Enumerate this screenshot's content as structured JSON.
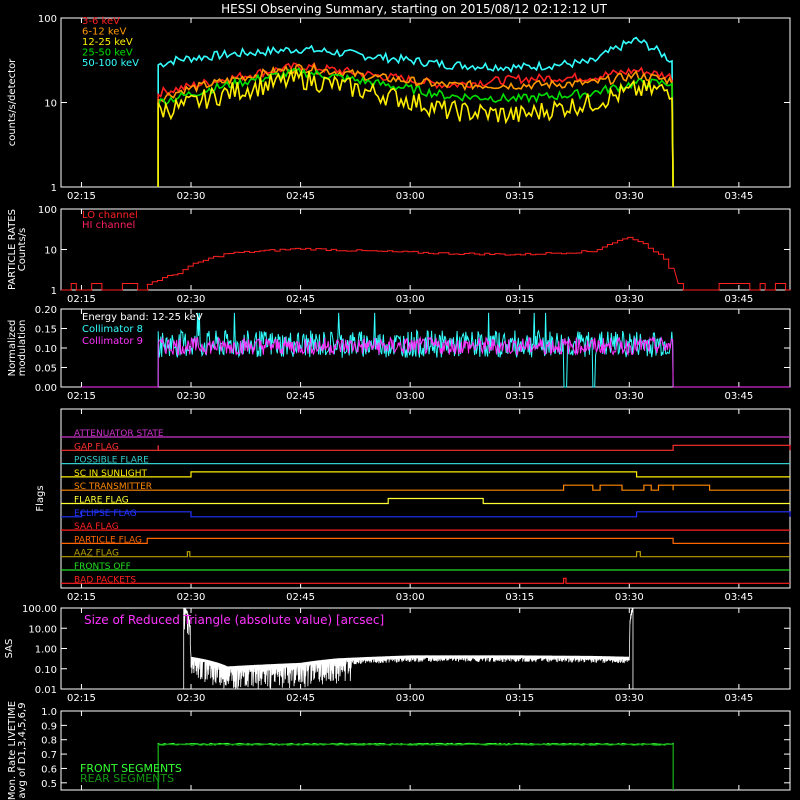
{
  "title": "HESSI Observing Summary, starting on 2015/08/12 02:12:12 UT",
  "time_ticks": [
    "02:15",
    "02:30",
    "02:45",
    "03:00",
    "03:15",
    "03:30",
    "03:45"
  ],
  "chart_data": [
    {
      "type": "line",
      "id": "counts",
      "ylabel": "counts/s/detector",
      "yscale": "log",
      "ylim": [
        1,
        100
      ],
      "yticks": [
        "1",
        "10",
        "100"
      ],
      "series": [
        {
          "name": "3-6 keV",
          "color": "#ff2020",
          "x": [
            "02:25:30",
            "02:29",
            "02:35",
            "02:45",
            "02:55",
            "03:05",
            "03:15",
            "03:25",
            "03:31",
            "03:36"
          ],
          "values": [
            13,
            15,
            19,
            27,
            21,
            16,
            19,
            20,
            24,
            20
          ]
        },
        {
          "name": "6-12 keV",
          "color": "#ff9900",
          "x": [
            "02:25:30",
            "02:29",
            "02:35",
            "02:45",
            "02:55",
            "03:05",
            "03:15",
            "03:25",
            "03:31",
            "03:36"
          ],
          "values": [
            11,
            14,
            18,
            26,
            20,
            16,
            16,
            17,
            21,
            18
          ]
        },
        {
          "name": "12-25 keV",
          "color": "#ffee00",
          "x": [
            "02:25:30",
            "02:29",
            "02:35",
            "02:45",
            "02:55",
            "03:05",
            "03:15",
            "03:25",
            "03:31",
            "03:36"
          ],
          "values": [
            8,
            9,
            13,
            19,
            13,
            8,
            7,
            10,
            14,
            14
          ]
        },
        {
          "name": "25-50 keV",
          "color": "#00e000",
          "x": [
            "02:25:30",
            "02:29",
            "02:35",
            "02:45",
            "02:55",
            "03:05",
            "03:15",
            "03:25",
            "03:31",
            "03:36"
          ],
          "values": [
            10,
            12,
            16,
            23,
            17,
            12,
            11,
            13,
            17,
            17
          ]
        },
        {
          "name": "50-100 keV",
          "color": "#33ffff",
          "x": [
            "02:25:30",
            "02:28",
            "02:35",
            "02:45",
            "02:55",
            "03:05",
            "03:15",
            "03:25",
            "03:31",
            "03:36"
          ],
          "values": [
            28,
            32,
            37,
            43,
            35,
            28,
            26,
            30,
            55,
            30
          ]
        }
      ]
    },
    {
      "type": "line",
      "id": "particle",
      "ylabel": "PARTICLE RATES Counts/s",
      "yscale": "log",
      "ylim": [
        1,
        100
      ],
      "yticks": [
        "1",
        "10",
        "100"
      ],
      "series": [
        {
          "name": "LO channel",
          "color": "#ff2020",
          "x": [
            "02:24",
            "02:28",
            "02:35",
            "02:45",
            "02:55",
            "03:05",
            "03:15",
            "03:25",
            "03:30",
            "03:33",
            "03:36"
          ],
          "values": [
            1.4,
            2.5,
            8,
            10.5,
            9,
            8,
            7.5,
            9,
            20,
            10,
            2
          ]
        },
        {
          "name": "HI channel",
          "color": "#ff2060",
          "x": [],
          "values": []
        }
      ]
    },
    {
      "type": "line",
      "id": "modulation",
      "ylabel": "Normalized modulation",
      "ylim": [
        0,
        0.2
      ],
      "yticks": [
        "0.00",
        "0.05",
        "0.10",
        "0.15",
        "0.20"
      ],
      "annotation": "Energy band: 12-25 keV",
      "series": [
        {
          "name": "Collimator 8",
          "color": "#33ffff",
          "mean": 0.11
        },
        {
          "name": "Collimator 9",
          "color": "#ff33ff",
          "mean": 0.105
        }
      ]
    },
    {
      "type": "line",
      "id": "flags",
      "ylabel": "Flags",
      "series": [
        {
          "name": "ATTENUATOR STATE",
          "color": "#cc33cc",
          "steps": []
        },
        {
          "name": "GAP FLAG",
          "color": "#ff3030",
          "steps": [
            [
              "02:25:30",
              "02:25:30"
            ],
            [
              "03:36",
              "03:52"
            ]
          ]
        },
        {
          "name": "POSSIBLE FLARE",
          "color": "#33cccc",
          "steps": []
        },
        {
          "name": "SC IN SUNLIGHT",
          "color": "#ffee00",
          "steps": [
            [
              "02:30",
              "03:31"
            ]
          ]
        },
        {
          "name": "SC TRANSMITTER",
          "color": "#ff8800",
          "steps": [
            [
              "03:21",
              "03:25"
            ],
            [
              "03:26",
              "03:29"
            ],
            [
              "03:32",
              "03:33"
            ],
            [
              "03:34",
              "03:36"
            ],
            [
              "03:36",
              "03:41"
            ]
          ]
        },
        {
          "name": "FLARE FLAG",
          "color": "#ffff33",
          "steps": [
            [
              "02:57",
              "03:10"
            ]
          ]
        },
        {
          "name": "ECLIPSE FLAG",
          "color": "#2233ff",
          "steps": [
            [
              "02:15",
              "02:30"
            ],
            [
              "03:31",
              "03:52"
            ]
          ]
        },
        {
          "name": "SAA FLAG",
          "color": "#ff2020",
          "steps": []
        },
        {
          "name": "PARTICLE FLAG",
          "color": "#ff6600",
          "steps": [
            [
              "02:24",
              "03:36"
            ]
          ]
        },
        {
          "name": "AAZ FLAG",
          "color": "#b8a000",
          "steps": [
            [
              "02:29:30",
              "02:29:50"
            ],
            [
              "03:31",
              "03:31:30"
            ]
          ]
        },
        {
          "name": "FRONTS OFF",
          "color": "#22dd22",
          "steps": []
        },
        {
          "name": "BAD PACKETS",
          "color": "#ff2020",
          "steps": [
            [
              "03:21",
              "03:21:20"
            ]
          ]
        }
      ]
    },
    {
      "type": "area",
      "id": "sas",
      "ylabel": "SAS",
      "yscale": "log",
      "ylim": [
        0.01,
        100
      ],
      "yticks": [
        "0.01",
        "0.10",
        "1.00",
        "10.00",
        "100.00"
      ],
      "annotation": "Size of Reduced Triangle (absolute value) [arcsec]",
      "x": [
        "02:29",
        "02:30",
        "02:35",
        "02:45",
        "02:50",
        "03:00",
        "03:15",
        "03:25",
        "03:30",
        "03:30:30"
      ],
      "values": [
        100,
        0.3,
        0.1,
        0.15,
        0.25,
        0.35,
        0.35,
        0.33,
        0.3,
        100
      ]
    },
    {
      "type": "line",
      "id": "livetime",
      "ylabel": "Mon. Rate LIVETIME avg of D1,3,4,5,6,9",
      "ylim": [
        0.45,
        1.0
      ],
      "yticks": [
        "0.5",
        "0.6",
        "0.7",
        "0.8",
        "0.9",
        "1.0"
      ],
      "series": [
        {
          "name": "FRONT SEGMENTS",
          "color": "#33ff33",
          "x": [
            "02:25:30",
            "03:36"
          ],
          "values": [
            0.77,
            0.77
          ]
        },
        {
          "name": "REAR SEGMENTS",
          "color": "#119911",
          "x": [
            "02:25:30",
            "03:36"
          ],
          "values": [
            0.765,
            0.765
          ]
        }
      ]
    }
  ]
}
